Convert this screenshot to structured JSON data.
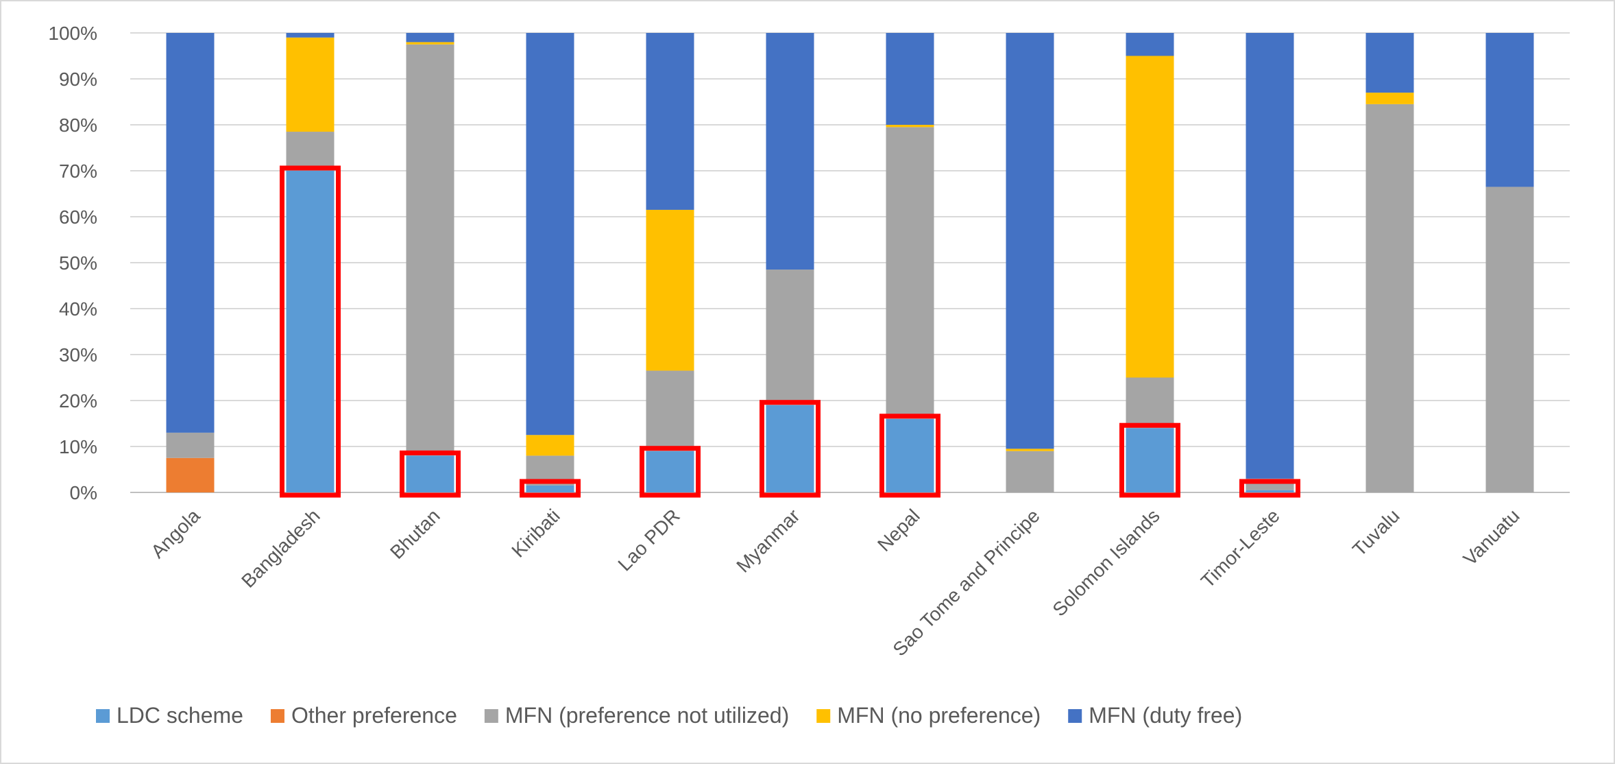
{
  "chart_data": {
    "type": "bar",
    "stacked": true,
    "percent_stacked": true,
    "title": "",
    "xlabel": "",
    "ylabel": "",
    "ylim": [
      0,
      100
    ],
    "y_ticks": [
      "0%",
      "10%",
      "20%",
      "30%",
      "40%",
      "50%",
      "60%",
      "70%",
      "80%",
      "90%",
      "100%"
    ],
    "grid": true,
    "legend_position": "bottom",
    "categories": [
      "Angola",
      "Bangladesh",
      "Bhutan",
      "Kiribati",
      "Lao PDR",
      "Myanmar",
      "Nepal",
      "Sao Tome and Principe",
      "Solomon Islands",
      "Timor-Leste",
      "Tuvalu",
      "Vanuatu"
    ],
    "series": [
      {
        "name": "LDC scheme",
        "color": "#5b9bd5",
        "values": [
          0,
          70,
          8,
          1.5,
          9,
          19,
          16,
          0,
          14,
          0.5,
          0,
          0
        ]
      },
      {
        "name": "Other preference",
        "color": "#ed7d31",
        "values": [
          7.5,
          0,
          0,
          0,
          0,
          0,
          0,
          0,
          0,
          0,
          0,
          0
        ]
      },
      {
        "name": "MFN (preference not utilized)",
        "color": "#a5a5a5",
        "values": [
          5.5,
          8.5,
          89.5,
          6.5,
          17.5,
          29.5,
          63.5,
          9,
          11,
          2.5,
          84.5,
          66.5
        ]
      },
      {
        "name": "MFN (no preference)",
        "color": "#ffc000",
        "values": [
          0,
          20.5,
          0.5,
          4.5,
          35,
          0,
          0.5,
          0.5,
          70,
          0,
          2.5,
          0
        ]
      },
      {
        "name": "MFN (duty free)",
        "color": "#4472c4",
        "values": [
          87,
          1,
          2,
          87.5,
          38.5,
          51.5,
          20,
          90.5,
          5,
          97,
          13,
          33.5
        ]
      }
    ],
    "highlighted_series": "LDC scheme",
    "highlight_color": "#ff0000"
  }
}
